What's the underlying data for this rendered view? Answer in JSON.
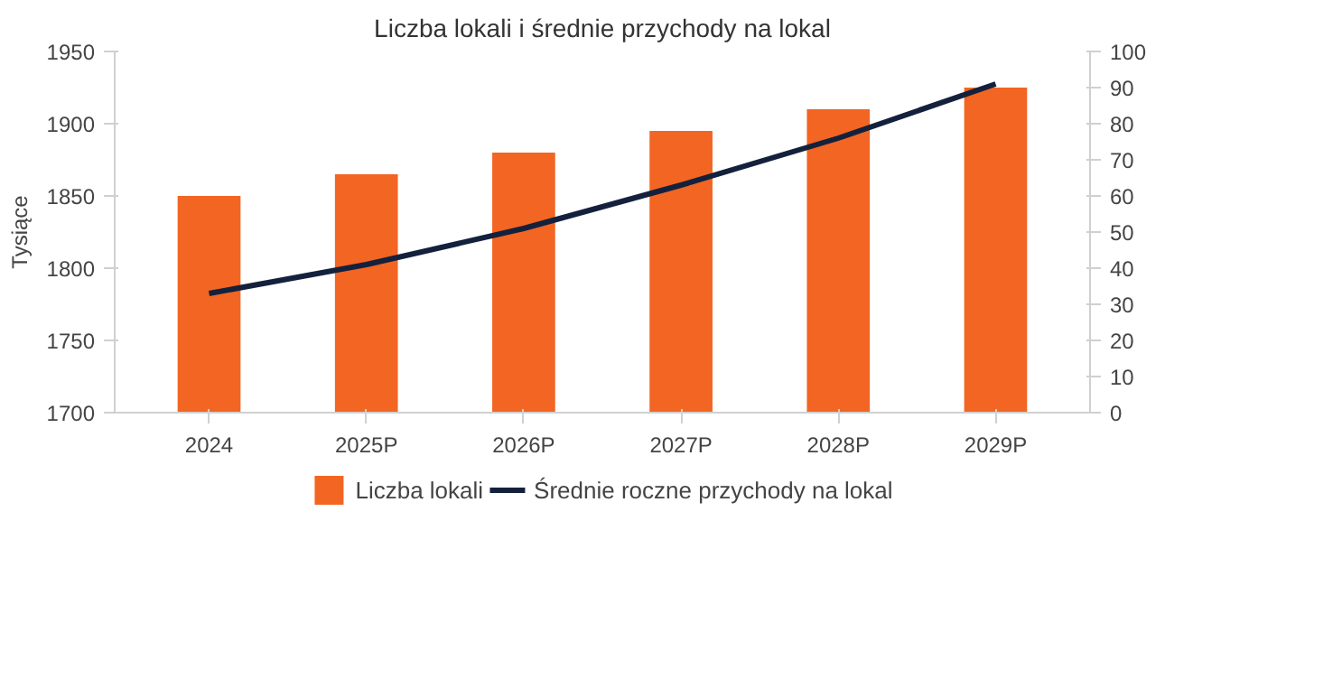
{
  "chart_data": {
    "type": "bar",
    "title": "Liczba lokali i średnie przychody na lokal",
    "ylabel": "Tysiące",
    "categories": [
      "2024",
      "2025P",
      "2026P",
      "2027P",
      "2028P",
      "2029P"
    ],
    "series": [
      {
        "name": "Liczba lokali",
        "color": "#f26522",
        "values": [
          1850,
          1865,
          1880,
          1895,
          1910,
          1925
        ]
      },
      {
        "name": "Średnie roczne przychody na lokal",
        "type": "line",
        "axis": "y2",
        "color": "#14213d",
        "values": [
          33,
          41,
          51,
          63,
          76,
          91
        ]
      }
    ],
    "ylim": [
      1700,
      1950
    ],
    "yticks": [
      1700,
      1750,
      1800,
      1850,
      1900,
      1950
    ],
    "y2lim": [
      0,
      100
    ],
    "y2ticks": [
      0,
      10,
      20,
      30,
      40,
      50,
      60,
      70,
      80,
      90,
      100
    ],
    "grid": false,
    "legend": "bottom",
    "line_style": "solid",
    "marker": "none"
  }
}
